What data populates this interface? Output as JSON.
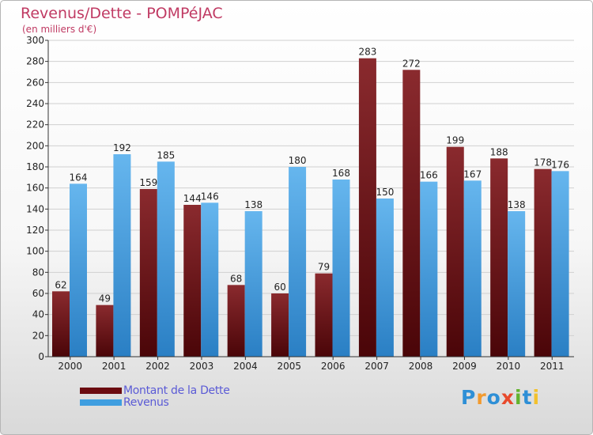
{
  "header": {
    "title": "Revenus/Dette - POMPéJAC",
    "subtitle": "(en milliers d'€)"
  },
  "legend": {
    "items": [
      {
        "label": "Montant de la Dette",
        "color": "#6b0b10"
      },
      {
        "label": "Revenus",
        "color": "#3f9ee0"
      }
    ]
  },
  "brand": {
    "name": "Proxiti",
    "letters": [
      {
        "ch": "P",
        "color": "#2e8fd6"
      },
      {
        "ch": "r",
        "color": "#f29a2e"
      },
      {
        "ch": "o",
        "color": "#2e8fd6"
      },
      {
        "ch": "x",
        "color": "#e84a2c"
      },
      {
        "ch": "i",
        "color": "#63b32e"
      },
      {
        "ch": "t",
        "color": "#2e8fd6"
      },
      {
        "ch": "i",
        "color": "#f2c12e"
      }
    ]
  },
  "colors": {
    "debt_top": "#8a2a2e",
    "debt_bottom": "#4a0508",
    "rev_top": "#66b6ee",
    "rev_bottom": "#2a7fc4",
    "grid": "#d0d0d0"
  },
  "chart_data": {
    "type": "bar",
    "title": "Revenus/Dette - POMPéJAC",
    "ylabel": "(en milliers d'€)",
    "xlabel": "",
    "categories": [
      "2000",
      "2001",
      "2002",
      "2003",
      "2004",
      "2005",
      "2006",
      "2007",
      "2008",
      "2009",
      "2010",
      "2011"
    ],
    "series": [
      {
        "name": "Montant de la Dette",
        "values": [
          62,
          49,
          159,
          144,
          68,
          60,
          79,
          283,
          272,
          199,
          188,
          178
        ]
      },
      {
        "name": "Revenus",
        "values": [
          164,
          192,
          185,
          146,
          138,
          180,
          168,
          150,
          166,
          167,
          138,
          176
        ]
      }
    ],
    "ylim": [
      0,
      300
    ],
    "ytick_step": 20,
    "grid": true,
    "legend_position": "bottom-left"
  }
}
